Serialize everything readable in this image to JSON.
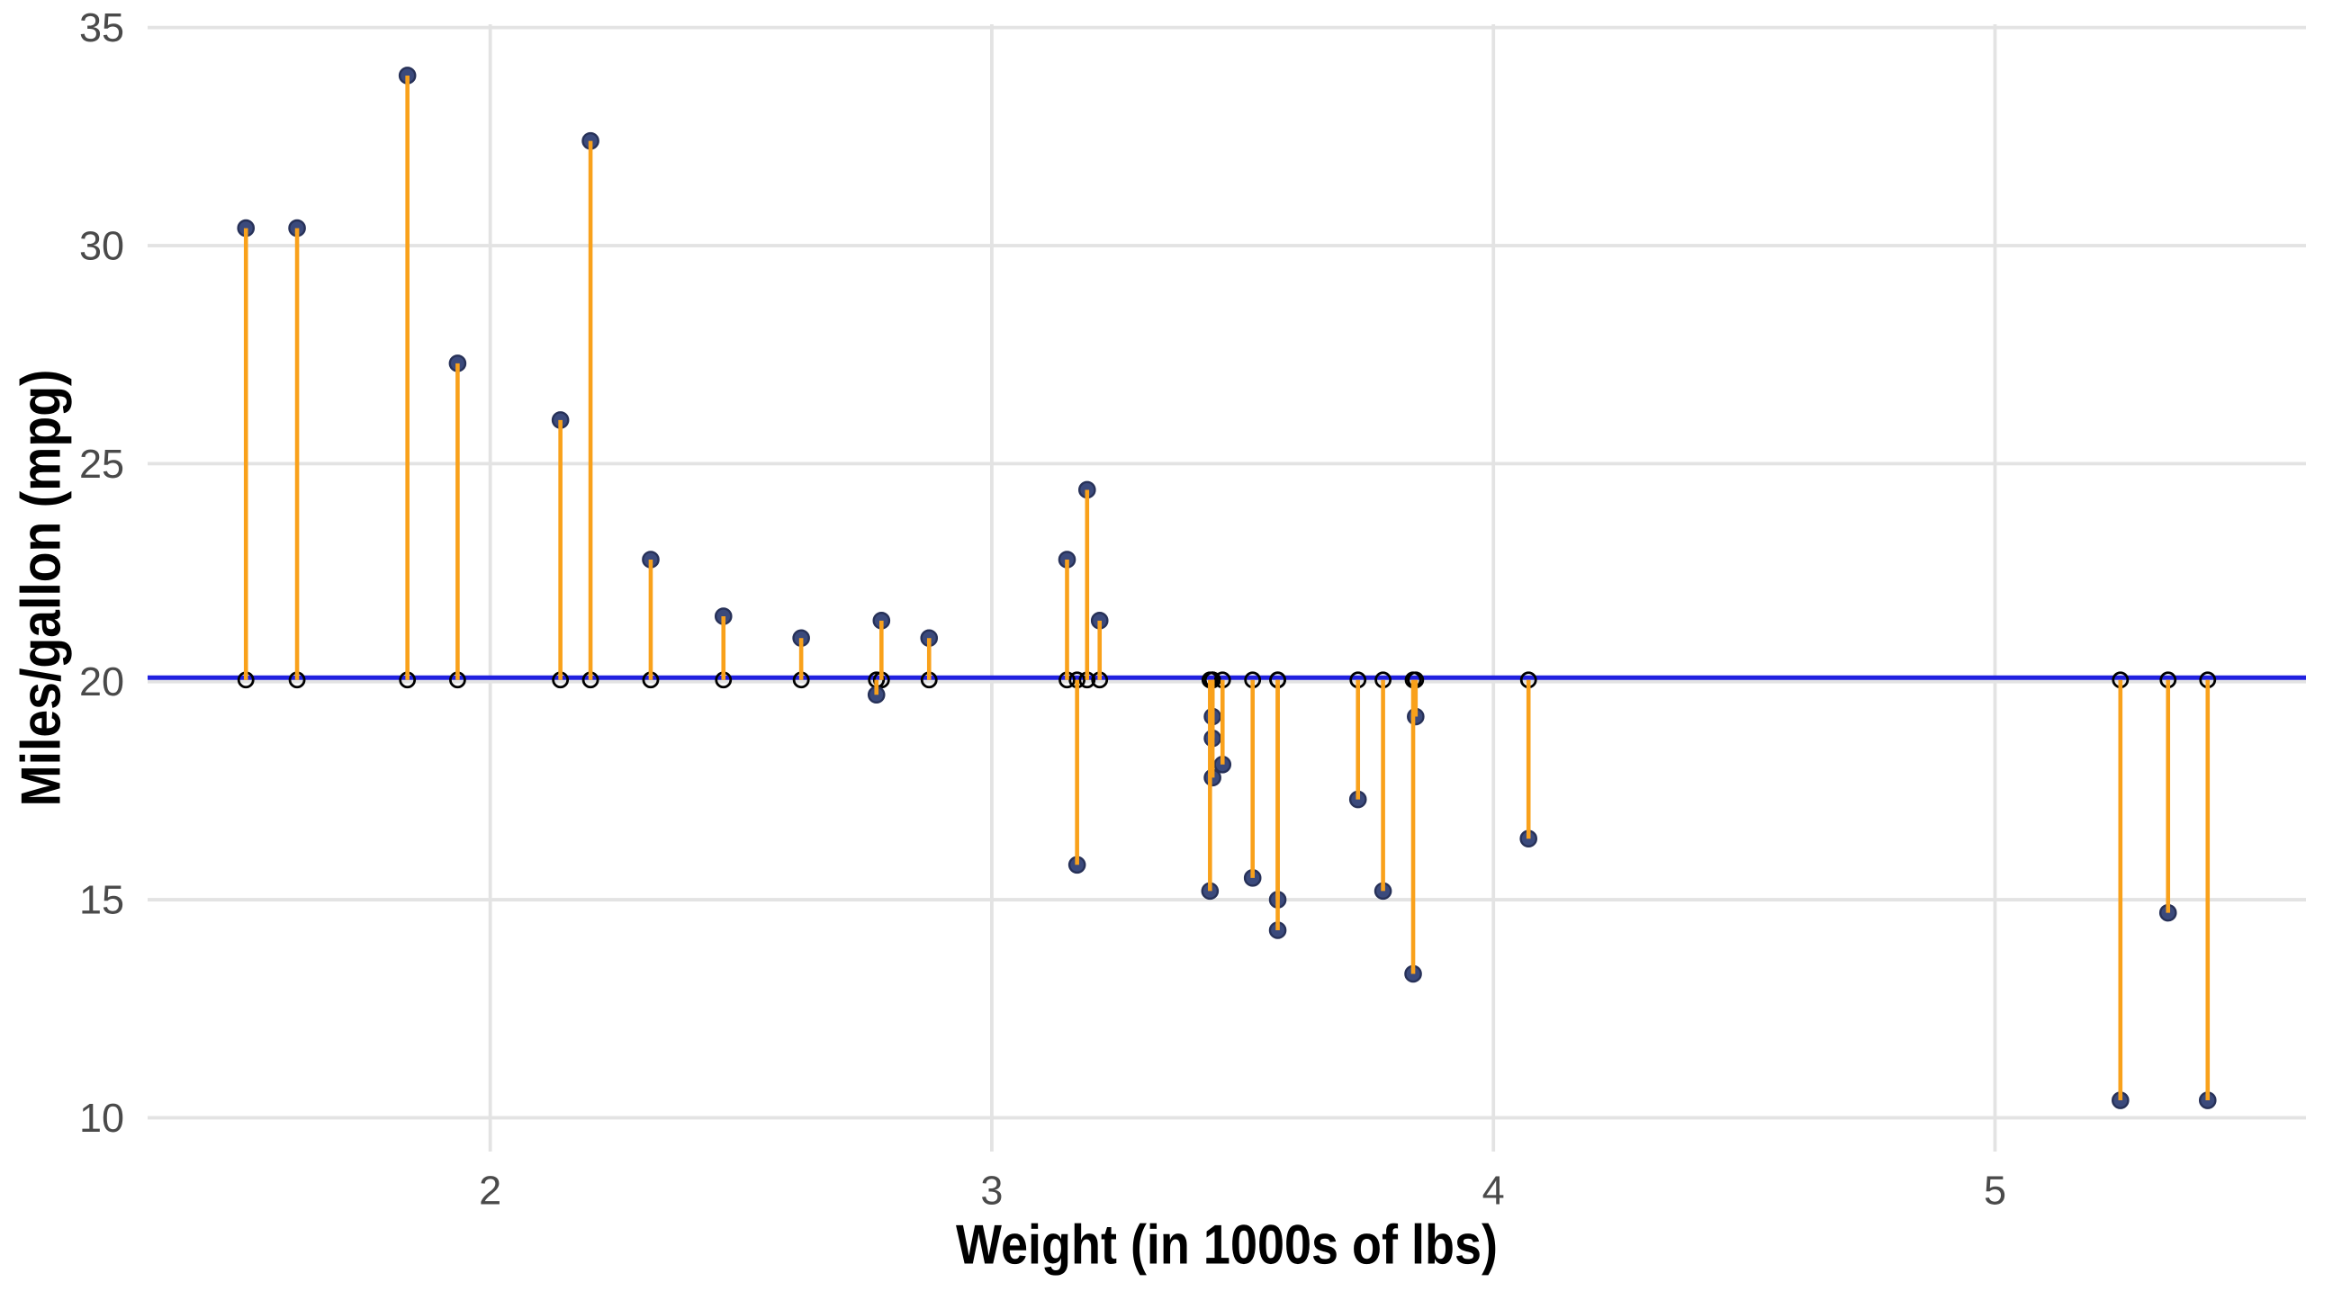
{
  "chart_data": {
    "type": "scatter",
    "title": "",
    "xlabel": "Weight (in 1000s of lbs)",
    "ylabel": "Miles/gallon (mpg)",
    "x_ticks": [
      "2",
      "3",
      "4",
      "5"
    ],
    "y_ticks": [
      "10",
      "15",
      "20",
      "25",
      "30",
      "35"
    ],
    "x_tick_values": [
      2,
      3,
      4,
      5
    ],
    "y_tick_values": [
      10,
      15,
      20,
      25,
      30,
      35
    ],
    "xlim": [
      1.317,
      5.62
    ],
    "ylim": [
      9.225,
      35.075
    ],
    "baseline_y": 20,
    "grid": "major",
    "legend": "none",
    "x": [
      2.62,
      2.875,
      2.32,
      3.215,
      3.44,
      3.46,
      3.57,
      3.19,
      3.15,
      3.44,
      3.44,
      4.07,
      3.73,
      3.78,
      5.25,
      5.424,
      5.345,
      2.2,
      1.615,
      1.835,
      2.465,
      3.52,
      3.435,
      3.84,
      3.845,
      1.935,
      2.14,
      1.513,
      3.17,
      2.77,
      3.57,
      2.78
    ],
    "y": [
      21.0,
      21.0,
      22.8,
      21.4,
      18.7,
      18.1,
      14.3,
      24.4,
      22.8,
      19.2,
      17.8,
      16.4,
      17.3,
      15.2,
      10.4,
      10.4,
      14.7,
      32.4,
      30.4,
      33.9,
      21.5,
      15.5,
      15.2,
      13.3,
      19.2,
      27.3,
      26.0,
      30.4,
      15.8,
      19.7,
      15.0,
      21.4
    ],
    "colors": {
      "background": "#FFFFFF",
      "grid": "#E3E3E3",
      "baseline": "#2121E0",
      "segment": "#F9A11B",
      "point_fill": "#3B4A7C",
      "point_stroke": "#273158",
      "open_circle_stroke": "#000000",
      "open_circle_fill": "none",
      "tick_label": "#4A4A4A",
      "axis_title": "#000000"
    }
  }
}
